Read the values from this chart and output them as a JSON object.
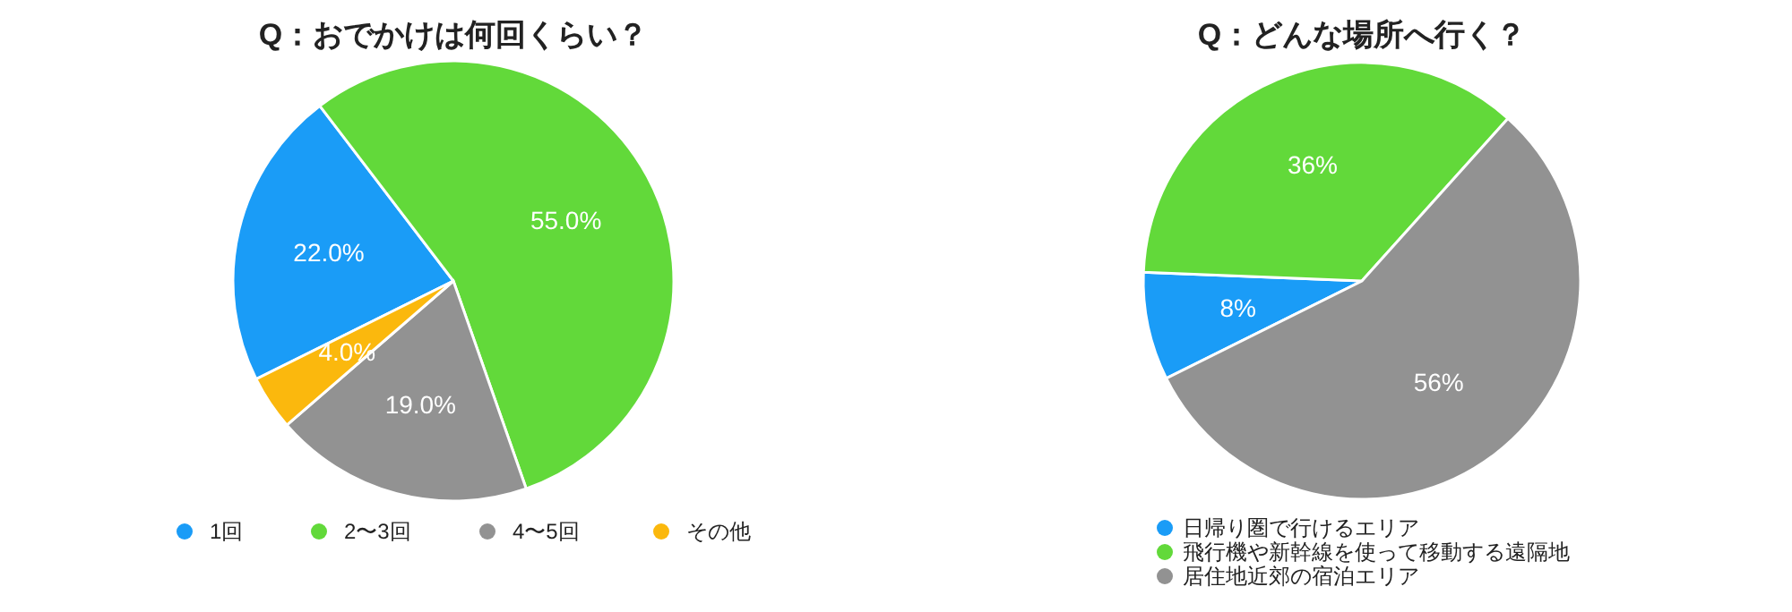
{
  "chart_data": [
    {
      "type": "pie",
      "title": "Q：おでかけは何回くらい？",
      "categories": [
        "1回",
        "2〜3回",
        "4〜5回",
        "その他"
      ],
      "values": [
        22.0,
        55.0,
        19.0,
        4.0
      ],
      "colors": [
        "#1a9cf7",
        "#62d93a",
        "#929292",
        "#fbb80d"
      ],
      "value_labels": [
        "22.0%",
        "55.0%",
        "19.0%",
        "4.0%"
      ],
      "legend": "bottom"
    },
    {
      "type": "pie",
      "title": "Q：どんな場所へ行く？",
      "categories": [
        "日帰り圏で行けるエリア",
        "飛行機や新幹線を使って移動する遠隔地",
        "居住地近郊の宿泊エリア"
      ],
      "values": [
        8,
        36,
        56
      ],
      "colors": [
        "#1a9cf7",
        "#62d93a",
        "#929292"
      ],
      "value_labels": [
        "8%",
        "36%",
        "56%"
      ],
      "legend": "bottom"
    }
  ]
}
